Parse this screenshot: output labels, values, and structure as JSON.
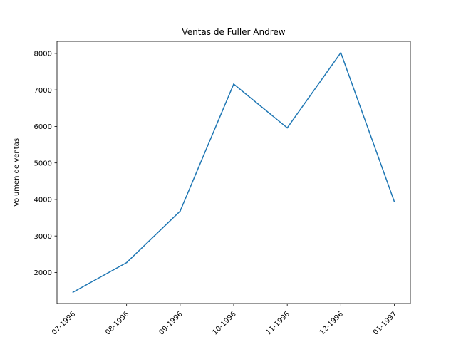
{
  "chart_data": {
    "type": "line",
    "title": "Ventas de Fuller Andrew",
    "xlabel": "",
    "ylabel": "Volumen de ventas",
    "categories": [
      "07-1996",
      "08-1996",
      "09-1996",
      "10-1996",
      "11-1996",
      "12-1996",
      "01-1997"
    ],
    "series": [
      {
        "values": [
          1460,
          2270,
          3680,
          7160,
          5960,
          8020,
          3940
        ]
      }
    ],
    "ylim": [
      1150,
      8330
    ],
    "yticks": [
      2000,
      3000,
      4000,
      5000,
      6000,
      7000,
      8000
    ],
    "grid": false,
    "legend": "none",
    "colors": {
      "line": "#1f77b4",
      "axes": "#000000",
      "background": "#ffffff"
    }
  }
}
